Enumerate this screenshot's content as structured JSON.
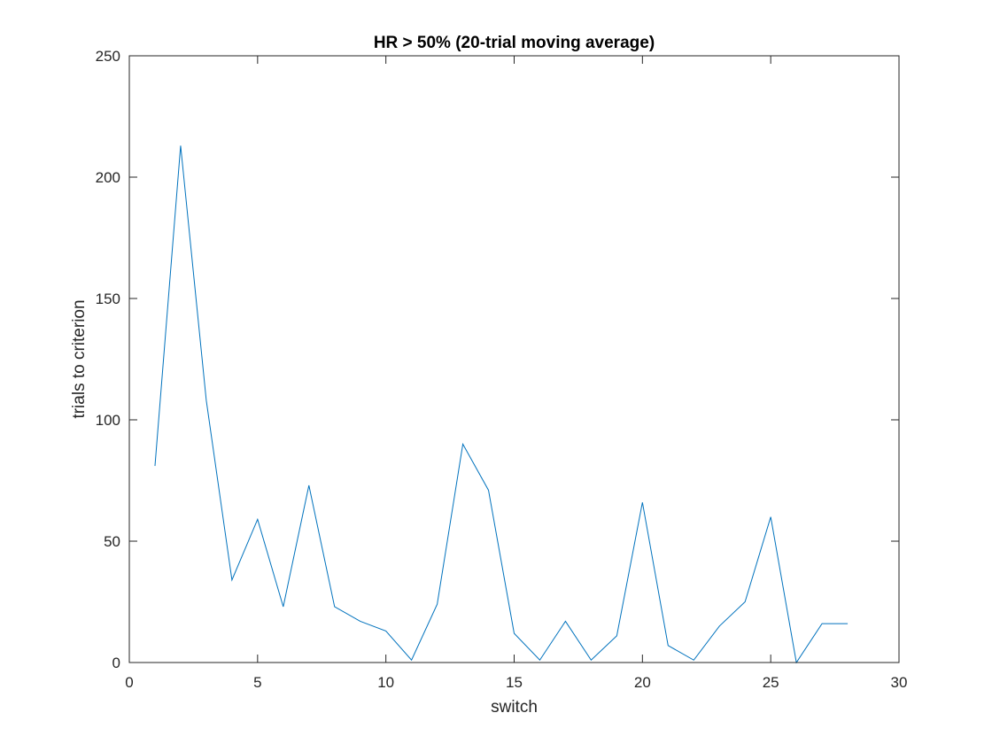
{
  "chart_data": {
    "type": "line",
    "title": "HR > 50% (20-trial moving average)",
    "xlabel": "switch",
    "ylabel": "trials to criterion",
    "xlim": [
      0,
      30
    ],
    "ylim": [
      0,
      250
    ],
    "xticks": [
      0,
      5,
      10,
      15,
      20,
      25,
      30
    ],
    "yticks": [
      0,
      50,
      100,
      150,
      200,
      250
    ],
    "grid": false,
    "series": [
      {
        "name": "trials to criterion",
        "color": "#0072BD",
        "x": [
          1,
          2,
          3,
          4,
          5,
          6,
          7,
          8,
          9,
          10,
          11,
          12,
          13,
          14,
          15,
          16,
          17,
          18,
          19,
          20,
          21,
          22,
          23,
          24,
          25,
          26,
          27,
          28
        ],
        "y": [
          81,
          213,
          108,
          34,
          59,
          23,
          73,
          23,
          17,
          13,
          1,
          24,
          90,
          71,
          12,
          1,
          17,
          1,
          11,
          66,
          7,
          1,
          15,
          25,
          60,
          0,
          16,
          16
        ]
      }
    ]
  }
}
